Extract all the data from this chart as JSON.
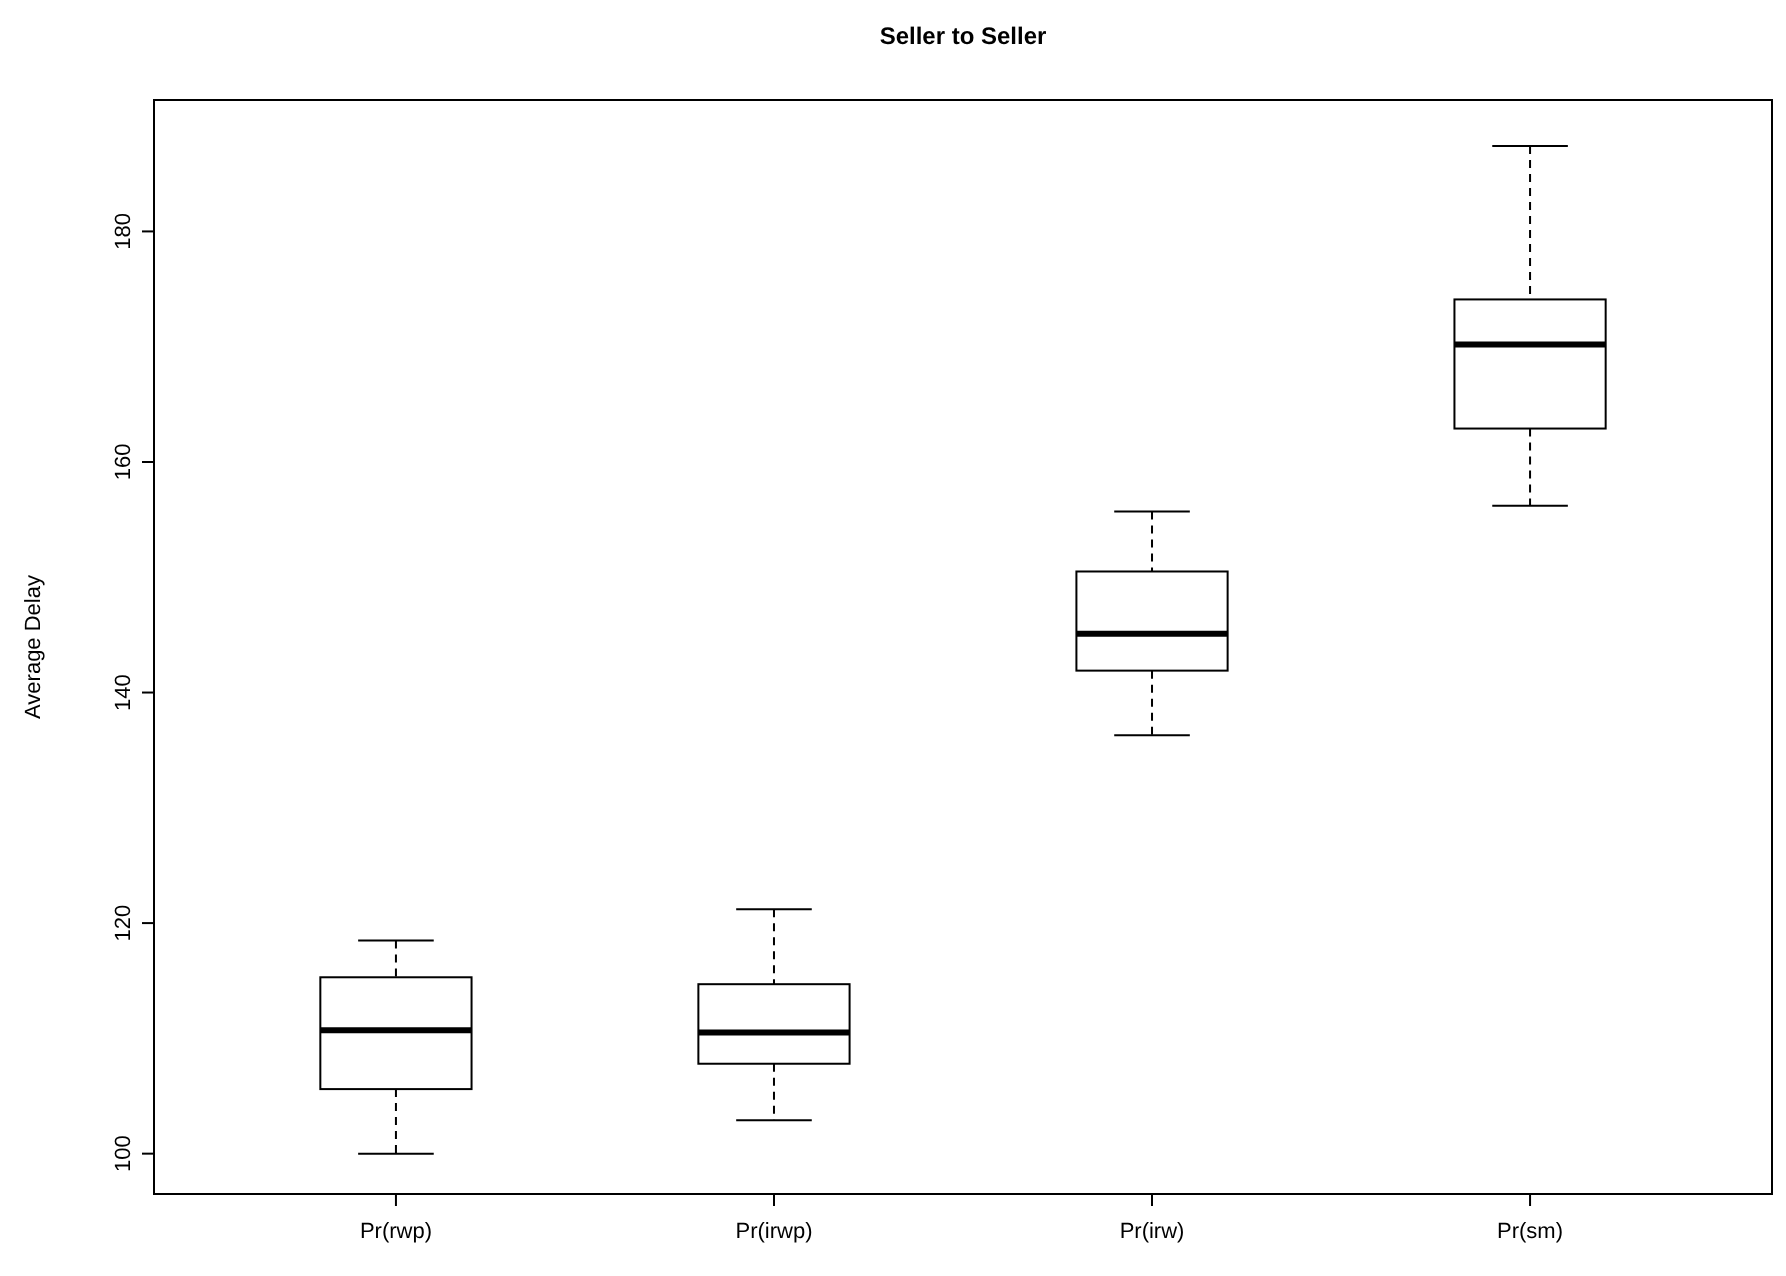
{
  "chart_data": {
    "type": "box",
    "title": "Seller to Seller",
    "ylabel": "Average Delay",
    "categories": [
      "Pr(rwp)",
      "Pr(irwp)",
      "Pr(irw)",
      "Pr(sm)"
    ],
    "boxes": [
      {
        "low": 100,
        "q1": 105.6,
        "median": 110.7,
        "q3": 115.3,
        "high": 118.5
      },
      {
        "low": 102.9,
        "q1": 107.8,
        "median": 110.5,
        "q3": 114.7,
        "high": 121.2
      },
      {
        "low": 136.3,
        "q1": 141.9,
        "median": 145.1,
        "q3": 150.5,
        "high": 155.7
      },
      {
        "low": 156.2,
        "q1": 162.9,
        "median": 170.2,
        "q3": 174.1,
        "high": 187.4
      }
    ],
    "ylim": [
      96.5,
      191.4
    ],
    "yticks": [
      100,
      120,
      140,
      160,
      180
    ],
    "grid": false
  }
}
